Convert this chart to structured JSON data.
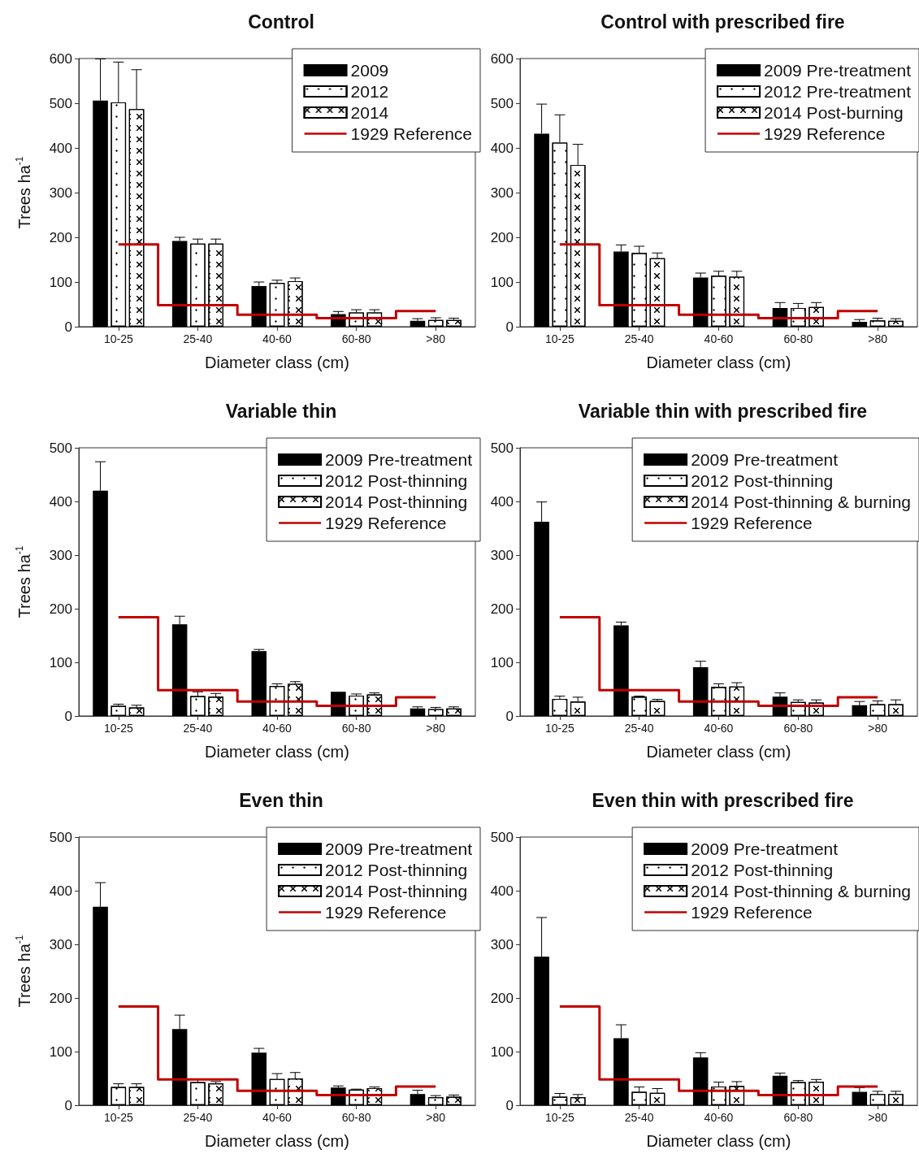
{
  "chart_data": [
    {
      "type": "bar",
      "title": "Control",
      "xlabel": "Diameter class (cm)",
      "ylabel": "Trees ha$^{-1}$",
      "categories": [
        "10-25",
        "25-40",
        "40-60",
        "60-80",
        ">80"
      ],
      "ylim": [
        0,
        600
      ],
      "yticks": [
        0,
        100,
        200,
        300,
        400,
        500,
        600
      ],
      "legend": "top right",
      "series": [
        {
          "name": "2009",
          "color": "#000000",
          "values": [
            506,
            192,
            91,
            28,
            13
          ],
          "errors": [
            [
              506,
              599
            ],
            [
              192,
              200
            ],
            [
              91,
              100
            ],
            [
              28,
              34
            ],
            [
              13,
              18
            ]
          ]
        },
        {
          "name": "2012",
          "color": "#ffffff",
          "values": [
            502,
            186,
            98,
            32,
            15
          ],
          "errors": [
            [
              502,
              592
            ],
            [
              186,
              196
            ],
            [
              98,
              104
            ],
            [
              32,
              38
            ],
            [
              15,
              20
            ]
          ]
        },
        {
          "name": "2014",
          "color": "#ffffff",
          "values": [
            487,
            186,
            102,
            32,
            15
          ],
          "errors": [
            [
              487,
              575
            ],
            [
              186,
              196
            ],
            [
              102,
              109
            ],
            [
              32,
              38
            ],
            [
              15,
              19
            ]
          ]
        },
        {
          "name": "1929 Reference",
          "type": "step",
          "color": "#c00000",
          "values": [
            184,
            48,
            27,
            19,
            35
          ]
        }
      ]
    },
    {
      "type": "bar",
      "title": "Control with prescribed fire",
      "xlabel": "Diameter class (cm)",
      "categories": [
        "10-25",
        "25-40",
        "40-60",
        "60-80",
        ">80"
      ],
      "ylim": [
        0,
        600
      ],
      "yticks": [
        0,
        100,
        200,
        300,
        400,
        500,
        600
      ],
      "legend": "top right",
      "series": [
        {
          "name": "2009 Pre-treatment",
          "color": "#000000",
          "values": [
            432,
            168,
            110,
            42,
            11
          ],
          "errors": [
            [
              432,
              498
            ],
            [
              168,
              183
            ],
            [
              110,
              120
            ],
            [
              42,
              54
            ],
            [
              11,
              16
            ]
          ]
        },
        {
          "name": "2012 Pre-treatment",
          "color": "#ffffff",
          "values": [
            412,
            165,
            114,
            42,
            14
          ],
          "errors": [
            [
              412,
              474
            ],
            [
              165,
              180
            ],
            [
              114,
              124
            ],
            [
              42,
              52
            ],
            [
              14,
              19
            ]
          ]
        },
        {
          "name": "2014 Post-burning",
          "color": "#ffffff",
          "values": [
            362,
            153,
            112,
            44,
            13
          ],
          "errors": [
            [
              362,
              408
            ],
            [
              153,
              165
            ],
            [
              112,
              124
            ],
            [
              44,
              54
            ],
            [
              13,
              18
            ]
          ]
        },
        {
          "name": "1929 Reference",
          "type": "step",
          "color": "#c00000",
          "values": [
            184,
            48,
            27,
            19,
            35
          ]
        }
      ]
    },
    {
      "type": "bar",
      "title": "Variable thin",
      "xlabel": "Diameter class (cm)",
      "ylabel": "Trees ha$^{-1}$",
      "categories": [
        "10-25",
        "25-40",
        "40-60",
        "60-80",
        ">80"
      ],
      "ylim": [
        0,
        500
      ],
      "yticks": [
        0,
        100,
        200,
        300,
        400,
        500
      ],
      "legend": "top right",
      "series": [
        {
          "name": "2009 Pre-treatment",
          "color": "#000000",
          "values": [
            420,
            171,
            121,
            45,
            14
          ],
          "errors": [
            [
              420,
              474
            ],
            [
              171,
              186
            ],
            [
              121,
              124
            ],
            null,
            [
              14,
              17
            ]
          ]
        },
        {
          "name": "2012 Post-thinning",
          "color": "#ffffff",
          "values": [
            19,
            37,
            56,
            38,
            13
          ],
          "errors": [
            [
              19,
              22
            ],
            [
              37,
              45
            ],
            [
              56,
              60
            ],
            [
              38,
              41
            ],
            [
              13,
              16
            ]
          ]
        },
        {
          "name": "2014 Post-thinning",
          "color": "#ffffff",
          "values": [
            16,
            36,
            60,
            40,
            14
          ],
          "errors": [
            [
              16,
              20
            ],
            [
              36,
              42
            ],
            [
              60,
              64
            ],
            [
              40,
              43
            ],
            [
              14,
              17
            ]
          ]
        },
        {
          "name": "1929 Reference",
          "type": "step",
          "color": "#c00000",
          "values": [
            184,
            48,
            27,
            19,
            35
          ]
        }
      ]
    },
    {
      "type": "bar",
      "title": "Variable thin with prescribed fire",
      "xlabel": "Diameter class (cm)",
      "categories": [
        "10-25",
        "25-40",
        "40-60",
        "60-80",
        ">80"
      ],
      "ylim": [
        0,
        500
      ],
      "yticks": [
        0,
        100,
        200,
        300,
        400,
        500
      ],
      "legend": "top right",
      "series": [
        {
          "name": "2009 Pre-treatment",
          "color": "#000000",
          "values": [
            362,
            169,
            91,
            36,
            20
          ],
          "errors": [
            [
              362,
              399
            ],
            [
              169,
              175
            ],
            [
              91,
              102
            ],
            [
              36,
              43
            ],
            [
              20,
              27
            ]
          ]
        },
        {
          "name": "2012 Post-thinning",
          "color": "#ffffff",
          "values": [
            32,
            36,
            54,
            26,
            22
          ],
          "errors": [
            [
              32,
              37
            ],
            [
              36,
              37
            ],
            [
              54,
              60
            ],
            [
              26,
              30
            ],
            [
              22,
              28
            ]
          ]
        },
        {
          "name": "2014 Post-thinning & burning",
          "color": "#ffffff",
          "values": [
            27,
            28,
            55,
            25,
            22
          ],
          "errors": [
            [
              27,
              35
            ],
            [
              28,
              31
            ],
            [
              55,
              62
            ],
            [
              25,
              30
            ],
            [
              22,
              30
            ]
          ]
        },
        {
          "name": "1929 Reference",
          "type": "step",
          "color": "#c00000",
          "values": [
            184,
            48,
            27,
            19,
            35
          ]
        }
      ]
    },
    {
      "type": "bar",
      "title": "Even thin",
      "xlabel": "Diameter class (cm)",
      "ylabel": "Trees ha$^{-1}$",
      "categories": [
        "10-25",
        "25-40",
        "40-60",
        "60-80",
        ">80"
      ],
      "ylim": [
        0,
        500
      ],
      "yticks": [
        0,
        100,
        200,
        300,
        400,
        500
      ],
      "legend": "top right",
      "series": [
        {
          "name": "2009 Pre-treatment",
          "color": "#000000",
          "values": [
            370,
            142,
            98,
            33,
            21
          ],
          "errors": [
            [
              370,
              415
            ],
            [
              142,
              168
            ],
            [
              98,
              106
            ],
            [
              33,
              36
            ],
            [
              21,
              28
            ]
          ]
        },
        {
          "name": "2012 Post-thinning",
          "color": "#ffffff",
          "values": [
            34,
            43,
            49,
            29,
            15
          ],
          "errors": [
            [
              34,
              40
            ],
            [
              43,
              48
            ],
            [
              49,
              59
            ],
            [
              29,
              30
            ],
            [
              15,
              18
            ]
          ]
        },
        {
          "name": "2014 Post-thinning",
          "color": "#ffffff",
          "values": [
            34,
            41,
            50,
            32,
            16
          ],
          "errors": [
            [
              34,
              40
            ],
            [
              41,
              44
            ],
            [
              50,
              61
            ],
            [
              32,
              34
            ],
            [
              16,
              19
            ]
          ]
        },
        {
          "name": "1929 Reference",
          "type": "step",
          "color": "#c00000",
          "values": [
            184,
            48,
            27,
            19,
            35
          ]
        }
      ]
    },
    {
      "type": "bar",
      "title": "Even thin with prescribed fire",
      "xlabel": "Diameter class (cm)",
      "categories": [
        "10-25",
        "25-40",
        "40-60",
        "60-80",
        ">80"
      ],
      "ylim": [
        0,
        500
      ],
      "yticks": [
        0,
        100,
        200,
        300,
        400,
        500
      ],
      "legend": "top right",
      "series": [
        {
          "name": "2009 Pre-treatment",
          "color": "#000000",
          "values": [
            277,
            125,
            89,
            55,
            25
          ],
          "errors": [
            [
              277,
              350
            ],
            [
              125,
              150
            ],
            [
              89,
              98
            ],
            [
              55,
              60
            ],
            [
              25,
              33
            ]
          ]
        },
        {
          "name": "2012 Post-thinning",
          "color": "#ffffff",
          "values": [
            16,
            25,
            35,
            43,
            21
          ],
          "errors": [
            [
              16,
              22
            ],
            [
              25,
              34
            ],
            [
              35,
              43
            ],
            [
              43,
              46
            ],
            [
              21,
              26
            ]
          ]
        },
        {
          "name": "2014 Post-thinning & burning",
          "color": "#ffffff",
          "values": [
            15,
            23,
            36,
            44,
            21
          ],
          "errors": [
            [
              15,
              20
            ],
            [
              23,
              31
            ],
            [
              36,
              44
            ],
            [
              44,
              48
            ],
            [
              21,
              26
            ]
          ]
        },
        {
          "name": "1929 Reference",
          "type": "step",
          "color": "#c00000",
          "values": [
            184,
            48,
            27,
            19,
            35
          ]
        }
      ]
    }
  ]
}
